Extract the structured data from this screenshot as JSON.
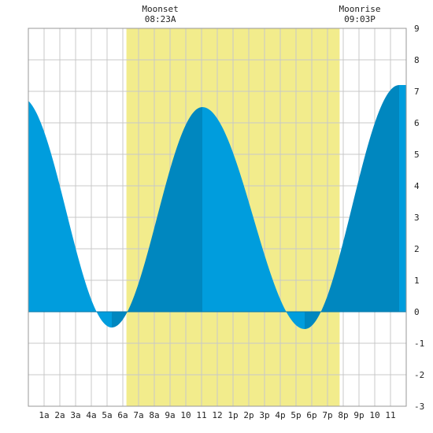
{
  "chart_data": {
    "type": "area",
    "title": "",
    "xlabel": "",
    "ylabel": "",
    "x_range_hours": [
      0,
      24
    ],
    "ylim": [
      -3,
      9
    ],
    "y_ticks": [
      "-3",
      "-2",
      "-1",
      "0",
      "1",
      "2",
      "3",
      "4",
      "5",
      "6",
      "7",
      "8",
      "9"
    ],
    "x_tick_labels": [
      "1a",
      "2a",
      "3a",
      "4a",
      "5a",
      "6a",
      "7a",
      "8a",
      "9a",
      "10",
      "11",
      "12",
      "1p",
      "2p",
      "3p",
      "4p",
      "5p",
      "6p",
      "7p",
      "8p",
      "9p",
      "10",
      "11"
    ],
    "grid": true,
    "daylight_hours": [
      6.23,
      19.77
    ],
    "tide_extremes": [
      {
        "type": "low",
        "hour": 5.3,
        "height": -0.5
      },
      {
        "type": "high",
        "hour": 11.05,
        "height": 6.5
      },
      {
        "type": "low",
        "hour": 17.55,
        "height": -0.55
      },
      {
        "type": "high",
        "hour": 23.55,
        "height": 7.2
      }
    ],
    "start_height": 6.7,
    "events": [
      {
        "name": "Moonset",
        "time": "08:23A",
        "hour": 8.38
      },
      {
        "name": "Moonrise",
        "time": "09:03P",
        "hour": 21.05
      }
    ],
    "colors": {
      "daylight": "#f2ec8c",
      "rising": "#0087bf",
      "falling": "#009ddd",
      "grid": "#c8c8c8",
      "frame": "#999999"
    }
  }
}
